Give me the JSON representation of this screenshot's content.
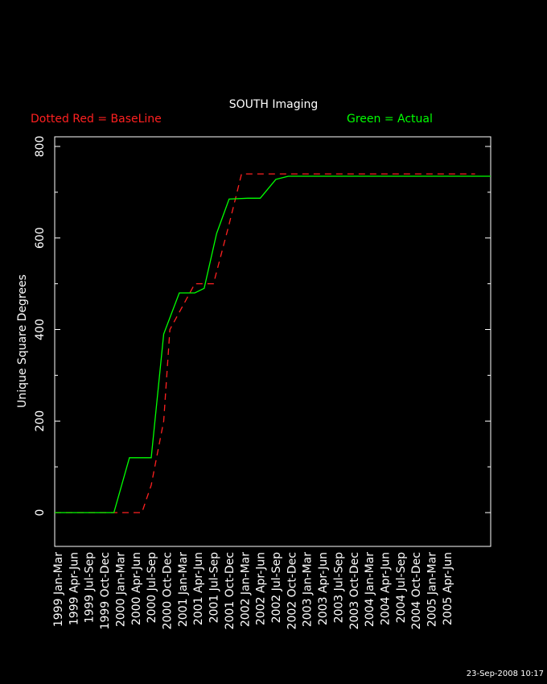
{
  "title": "SOUTH Imaging",
  "legend": {
    "baseline_label": "Dotted Red = BaseLine",
    "actual_label": "Green = Actual"
  },
  "timestamp": "23-Sep-2008 10:17",
  "colors": {
    "background": "#000000",
    "axes": "#ffffff",
    "baseline": "#ff2020",
    "actual": "#00ff00"
  },
  "chart_data": {
    "type": "line",
    "title": "SOUTH Imaging",
    "xlabel": "",
    "ylabel": "Unique Square Degrees",
    "ylim": [
      -80,
      820
    ],
    "yticks": [
      0,
      200,
      400,
      600,
      800
    ],
    "categories": [
      "1999 Jan-Mar",
      "1999 Apr-Jun",
      "1999 Jul-Sep",
      "1999 Oct-Dec",
      "2000 Jan-Mar",
      "2000 Apr-Jun",
      "2000 Jul-Sep",
      "2000 Oct-Dec",
      "2001 Jan-Mar",
      "2001 Apr-Jun",
      "2001 Jul-Sep",
      "2001 Oct-Dec",
      "2002 Jan-Mar",
      "2002 Apr-Jun",
      "2002 Jul-Sep",
      "2002 Oct-Dec",
      "2003 Jan-Mar",
      "2003 Apr-Jun",
      "2003 Jul-Sep",
      "2003 Oct-Dec",
      "2004 Jan-Mar",
      "2004 Apr-Jun",
      "2004 Jul-Sep",
      "2004 Oct-Dec",
      "2005 Jan-Mar",
      "2005 Apr-Jun"
    ],
    "grid": false,
    "series": [
      {
        "name": "BaseLine",
        "style": "dashed",
        "color": "#ff2020",
        "x": [
          1999.0,
          1999.75,
          2000.25,
          2000.4,
          2000.55,
          2000.75,
          2000.85,
          2001.25,
          2001.55,
          2001.8,
          2002.0,
          2002.5,
          2005.75
        ],
        "y": [
          0,
          0,
          0,
          0,
          60,
          200,
          400,
          500,
          500,
          630,
          740,
          740,
          740
        ]
      },
      {
        "name": "Actual",
        "style": "solid",
        "color": "#00ff00",
        "x": [
          1999.0,
          1999.75,
          1999.95,
          2000.2,
          2000.4,
          2000.55,
          2000.75,
          2001.0,
          2001.25,
          2001.4,
          2001.6,
          2001.8,
          2002.1,
          2002.3,
          2002.55,
          2002.75,
          2003.25,
          2006.0
        ],
        "y": [
          0,
          0,
          0,
          120,
          120,
          120,
          390,
          480,
          480,
          490,
          610,
          685,
          687,
          687,
          728,
          735,
          735,
          735
        ]
      }
    ]
  }
}
